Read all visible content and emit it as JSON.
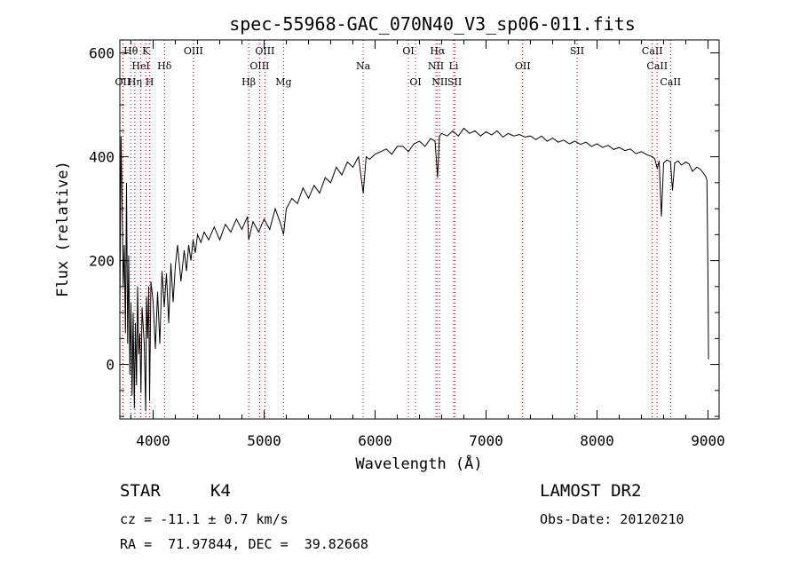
{
  "chart_data": {
    "type": "line",
    "title": "spec-55968-GAC_070N40_V3_sp06-011.fits",
    "xlabel": "Wavelength (Å)",
    "ylabel": "Flux (relative)",
    "xlim": [
      3700,
      9100
    ],
    "ylim": [
      -105,
      625
    ],
    "xticks": [
      "4000",
      "5000",
      "6000",
      "7000",
      "8000",
      "9000"
    ],
    "yticks": [
      "0",
      "200",
      "400",
      "600"
    ],
    "line_color": "#000000",
    "marker_color": "#cc0000",
    "grid": false,
    "series": [
      {
        "x": [
          3700,
          3710,
          3720,
          3730,
          3740,
          3750,
          3760,
          3770,
          3780,
          3790,
          3800,
          3810,
          3820,
          3830,
          3840,
          3850,
          3860,
          3870,
          3880,
          3890,
          3900,
          3920,
          3933,
          3940,
          3950,
          3960,
          3968,
          3980,
          4000,
          4020,
          4040,
          4060,
          4080,
          4100,
          4120,
          4140,
          4160,
          4180,
          4200,
          4220,
          4250,
          4280,
          4300,
          4320,
          4340,
          4360,
          4380,
          4400,
          4430,
          4460,
          4500,
          4550,
          4600,
          4650,
          4700,
          4750,
          4800,
          4850,
          4861,
          4900,
          4950,
          5000,
          5050,
          5100,
          5150,
          5175,
          5200,
          5250,
          5300,
          5350,
          5400,
          5450,
          5500,
          5550,
          5600,
          5650,
          5700,
          5750,
          5800,
          5850,
          5893,
          5920,
          5950,
          6000,
          6050,
          6100,
          6150,
          6200,
          6250,
          6300,
          6350,
          6400,
          6450,
          6500,
          6540,
          6563,
          6580,
          6600,
          6650,
          6700,
          6750,
          6800,
          6850,
          6900,
          6950,
          7000,
          7050,
          7100,
          7150,
          7200,
          7250,
          7300,
          7350,
          7400,
          7450,
          7500,
          7550,
          7600,
          7650,
          7700,
          7750,
          7800,
          7850,
          7900,
          7950,
          8000,
          8050,
          8100,
          8150,
          8200,
          8250,
          8300,
          8350,
          8400,
          8450,
          8498,
          8520,
          8542,
          8560,
          8580,
          8600,
          8630,
          8662,
          8680,
          8700,
          8730,
          8760,
          8800,
          8830,
          8860,
          8900,
          8930,
          8960,
          8980,
          8990,
          9000,
          9005
        ],
        "y": [
          100,
          440,
          320,
          150,
          230,
          60,
          350,
          40,
          210,
          -20,
          120,
          -60,
          100,
          -85,
          80,
          -40,
          150,
          20,
          60,
          -55,
          110,
          40,
          -90,
          130,
          50,
          150,
          -70,
          160,
          120,
          30,
          140,
          40,
          180,
          110,
          175,
          80,
          195,
          120,
          190,
          230,
          160,
          220,
          180,
          230,
          200,
          240,
          215,
          250,
          235,
          255,
          240,
          265,
          240,
          270,
          255,
          280,
          260,
          285,
          240,
          275,
          255,
          280,
          260,
          300,
          270,
          250,
          300,
          320,
          310,
          340,
          320,
          345,
          330,
          360,
          350,
          380,
          365,
          390,
          380,
          400,
          330,
          400,
          395,
          405,
          410,
          415,
          405,
          420,
          420,
          410,
          425,
          430,
          420,
          435,
          430,
          360,
          440,
          445,
          440,
          450,
          440,
          455,
          445,
          450,
          440,
          448,
          442,
          450,
          438,
          445,
          440,
          443,
          438,
          440,
          433,
          440,
          430,
          436,
          428,
          432,
          425,
          430,
          424,
          428,
          420,
          425,
          418,
          422,
          414,
          418,
          412,
          415,
          406,
          410,
          404,
          400,
          396,
          378,
          392,
          285,
          388,
          394,
          390,
          335,
          388,
          392,
          384,
          390,
          386,
          372,
          380,
          376,
          368,
          362,
          355,
          160,
          10
        ]
      }
    ],
    "line_markers": [
      {
        "label": "Hθ",
        "x": 3798,
        "row": 1
      },
      {
        "label": "K",
        "x": 3934,
        "row": 1
      },
      {
        "label": "OIII",
        "x": 4363,
        "row": 1
      },
      {
        "label": "OIII",
        "x": 5007,
        "row": 1
      },
      {
        "label": "OI",
        "x": 6300,
        "row": 1
      },
      {
        "label": "Hα",
        "x": 6563,
        "row": 1
      },
      {
        "label": "SII",
        "x": 7820,
        "row": 1
      },
      {
        "label": "CaII",
        "x": 8498,
        "row": 1
      },
      {
        "label": "HeI",
        "x": 3889,
        "row": 2
      },
      {
        "label": "Hδ",
        "x": 4102,
        "row": 2
      },
      {
        "label": "OIII",
        "x": 4959,
        "row": 2
      },
      {
        "label": "Na",
        "x": 5893,
        "row": 2
      },
      {
        "label": "NII",
        "x": 6548,
        "row": 2
      },
      {
        "label": "Li",
        "x": 6708,
        "row": 2
      },
      {
        "label": "OII",
        "x": 7330,
        "row": 2
      },
      {
        "label": "CaII",
        "x": 8542,
        "row": 2
      },
      {
        "label": "OII",
        "x": 3727,
        "row": 3
      },
      {
        "label": "Hη",
        "x": 3835,
        "row": 3
      },
      {
        "label": "H",
        "x": 3968,
        "row": 3
      },
      {
        "label": "Hβ",
        "x": 4861,
        "row": 3
      },
      {
        "label": "Mg",
        "x": 5175,
        "row": 3
      },
      {
        "label": "OI",
        "x": 6364,
        "row": 3
      },
      {
        "label": "NII",
        "x": 6583,
        "row": 3
      },
      {
        "label": "SII",
        "x": 6717,
        "row": 3
      },
      {
        "label": "CaII",
        "x": 8662,
        "row": 3
      }
    ]
  },
  "info": {
    "object_class": "STAR",
    "subclass": "K4",
    "survey": "LAMOST DR2",
    "redshift_text": "cz = -11.1 ± 0.7 km/s",
    "obs_date": "Obs-Date: 20120210",
    "coords": "RA =  71.97844, DEC =  39.82668"
  }
}
